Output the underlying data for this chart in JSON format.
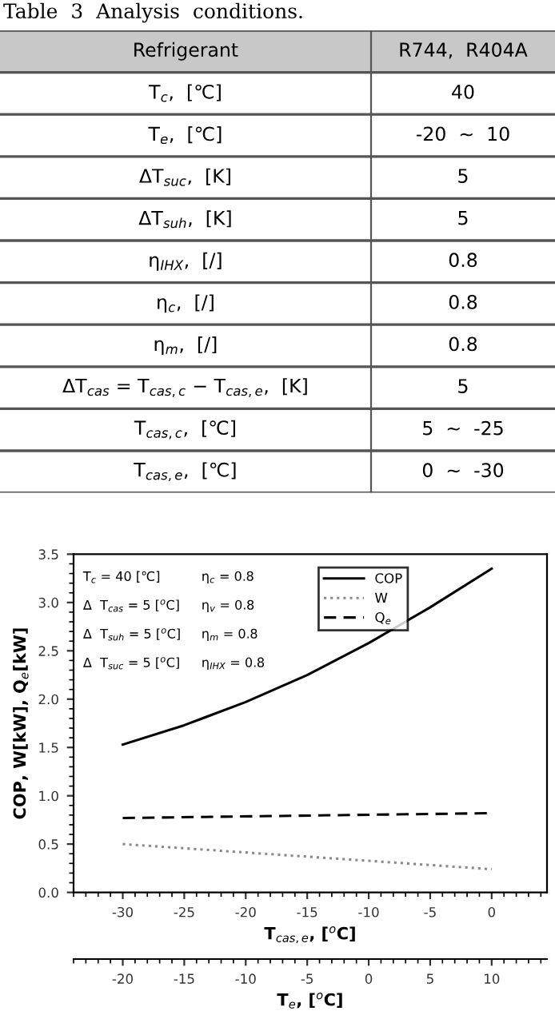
{
  "chart_data": [
    {
      "type": "other",
      "title": "Table  3  Analysis  conditions.",
      "annotations": [
        "Refrigerant",
        "R744,  R404A",
        "T$_{c}$,  [℃]",
        "40",
        "T$_{e}$,  [℃]",
        "-20  ~  10",
        "ΔT$_{suc}$,  [K]",
        "5",
        "ΔT$_{suh}$,  [K]",
        "5",
        "η$_{IHX}$,  [/]",
        "0.8",
        "η$_{c}$,  [/]",
        "0.8",
        "η$_{m}$,  [/]",
        "0.8",
        "ΔT$_{cas}$ = T$_{cas,c}$ − T$_{cas,e}$,  [K]",
        "5",
        "T$_{cas,c}$,  [℃]",
        "5  ~  -25",
        "T$_{cas,e}$,  [℃]",
        "0  ~  -30"
      ]
    },
    {
      "type": "line",
      "xlabel": "T$_{cas,e}$, [$^{o}$C]",
      "ylabel": "COP, W[kW], Q$_{e}$[kW]",
      "x2label": "T$_{e}$, [$^{o}$C]",
      "series": [
        {
          "name": "COP",
          "color": "#000000",
          "line_style": "solid",
          "x": [
            -30,
            -25,
            -20,
            -15,
            -10,
            -5,
            0
          ],
          "values": [
            1.53,
            1.73,
            1.97,
            2.25,
            2.58,
            2.95,
            3.35
          ]
        },
        {
          "name": "W",
          "color": "#888888",
          "line_style": "dotted",
          "x": [
            -30,
            0
          ],
          "values": [
            0.5,
            0.24
          ]
        },
        {
          "name": "Q$_{e}$",
          "color": "#000000",
          "line_style": "dashed",
          "x": [
            -30,
            0
          ],
          "values": [
            0.77,
            0.82
          ]
        }
      ],
      "xlim": [
        -34,
        4.5
      ],
      "xticks": [
        -30,
        -25,
        -20,
        -15,
        -10,
        -5,
        0
      ],
      "x2lim": [
        -24,
        14.5
      ],
      "x2ticks": [
        -20,
        -15,
        -10,
        -5,
        0,
        5,
        10
      ],
      "ylim": [
        0,
        3.5
      ],
      "yticks": [
        {
          "value": 0,
          "label": "0.0"
        },
        0.5,
        {
          "value": 1,
          "label": "1.0"
        },
        1.5,
        {
          "value": 2,
          "label": "2.0"
        },
        2.5,
        {
          "value": 3,
          "label": "3.0"
        },
        3.5
      ],
      "legend": "top right",
      "annotations": [
        "T$_{c}$ = 40 [℃]",
        "Δ  T$_{cas}$ = 5 [$^{o}$C]",
        "Δ  T$_{suh}$ = 5 [$^{o}$C]",
        "Δ  T$_{suc}$ = 5 [$^{o}$C]",
        "η$_{c}$ = 0.8",
        "η$_{v}$ = 0.8",
        "η$_{m}$ = 0.8",
        "η$_{IHX}$ = 0.8"
      ]
    }
  ]
}
